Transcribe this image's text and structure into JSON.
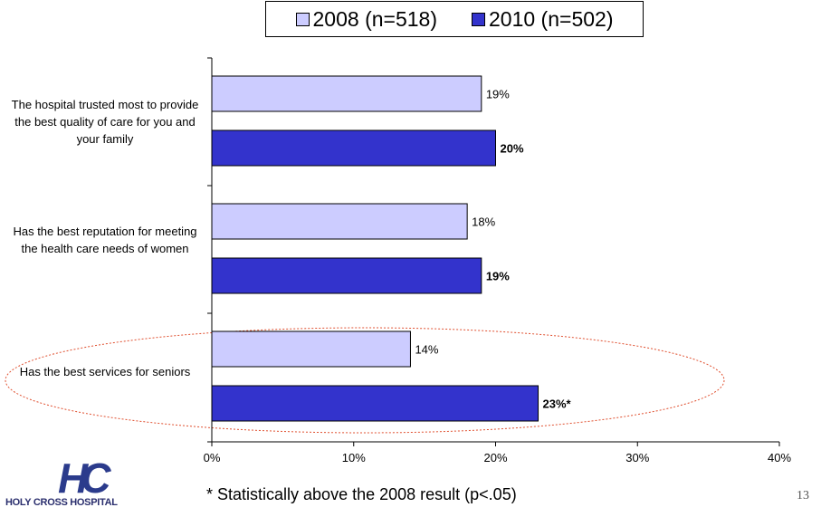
{
  "legend": [
    {
      "label": "2008 (n=518)",
      "color": "#ccccff"
    },
    {
      "label": "2010 (n=502)",
      "color": "#3333cc"
    }
  ],
  "categories": [
    "The hospital trusted most to provide the best quality of care for you and your family",
    "Has the best reputation for meeting the health care needs of women",
    "Has the best services for seniors"
  ],
  "chart_data": {
    "type": "bar",
    "orientation": "horizontal",
    "categories": [
      "The hospital trusted most to provide the best quality of care for you and your family",
      "Has the best reputation for meeting the health care needs of women",
      "Has the best services for seniors"
    ],
    "series": [
      {
        "name": "2008 (n=518)",
        "values": [
          19,
          18,
          14
        ],
        "labels": [
          "19%",
          "18%",
          "14%"
        ],
        "color": "#ccccff"
      },
      {
        "name": "2010 (n=502)",
        "values": [
          20,
          19,
          23
        ],
        "labels": [
          "20%",
          "19%",
          "23%*"
        ],
        "color": "#3333cc"
      }
    ],
    "xlim": [
      0,
      40
    ],
    "xticks": [
      "0%",
      "10%",
      "20%",
      "30%",
      "40%"
    ],
    "grid": false,
    "legend_position": "top",
    "highlight": "Has the best services for seniors"
  },
  "footnote": "* Statistically above the 2008 result (p<.05)",
  "logo": {
    "monogram": "HC",
    "text": "HOLY CROSS HOSPITAL"
  },
  "page_number": "13"
}
